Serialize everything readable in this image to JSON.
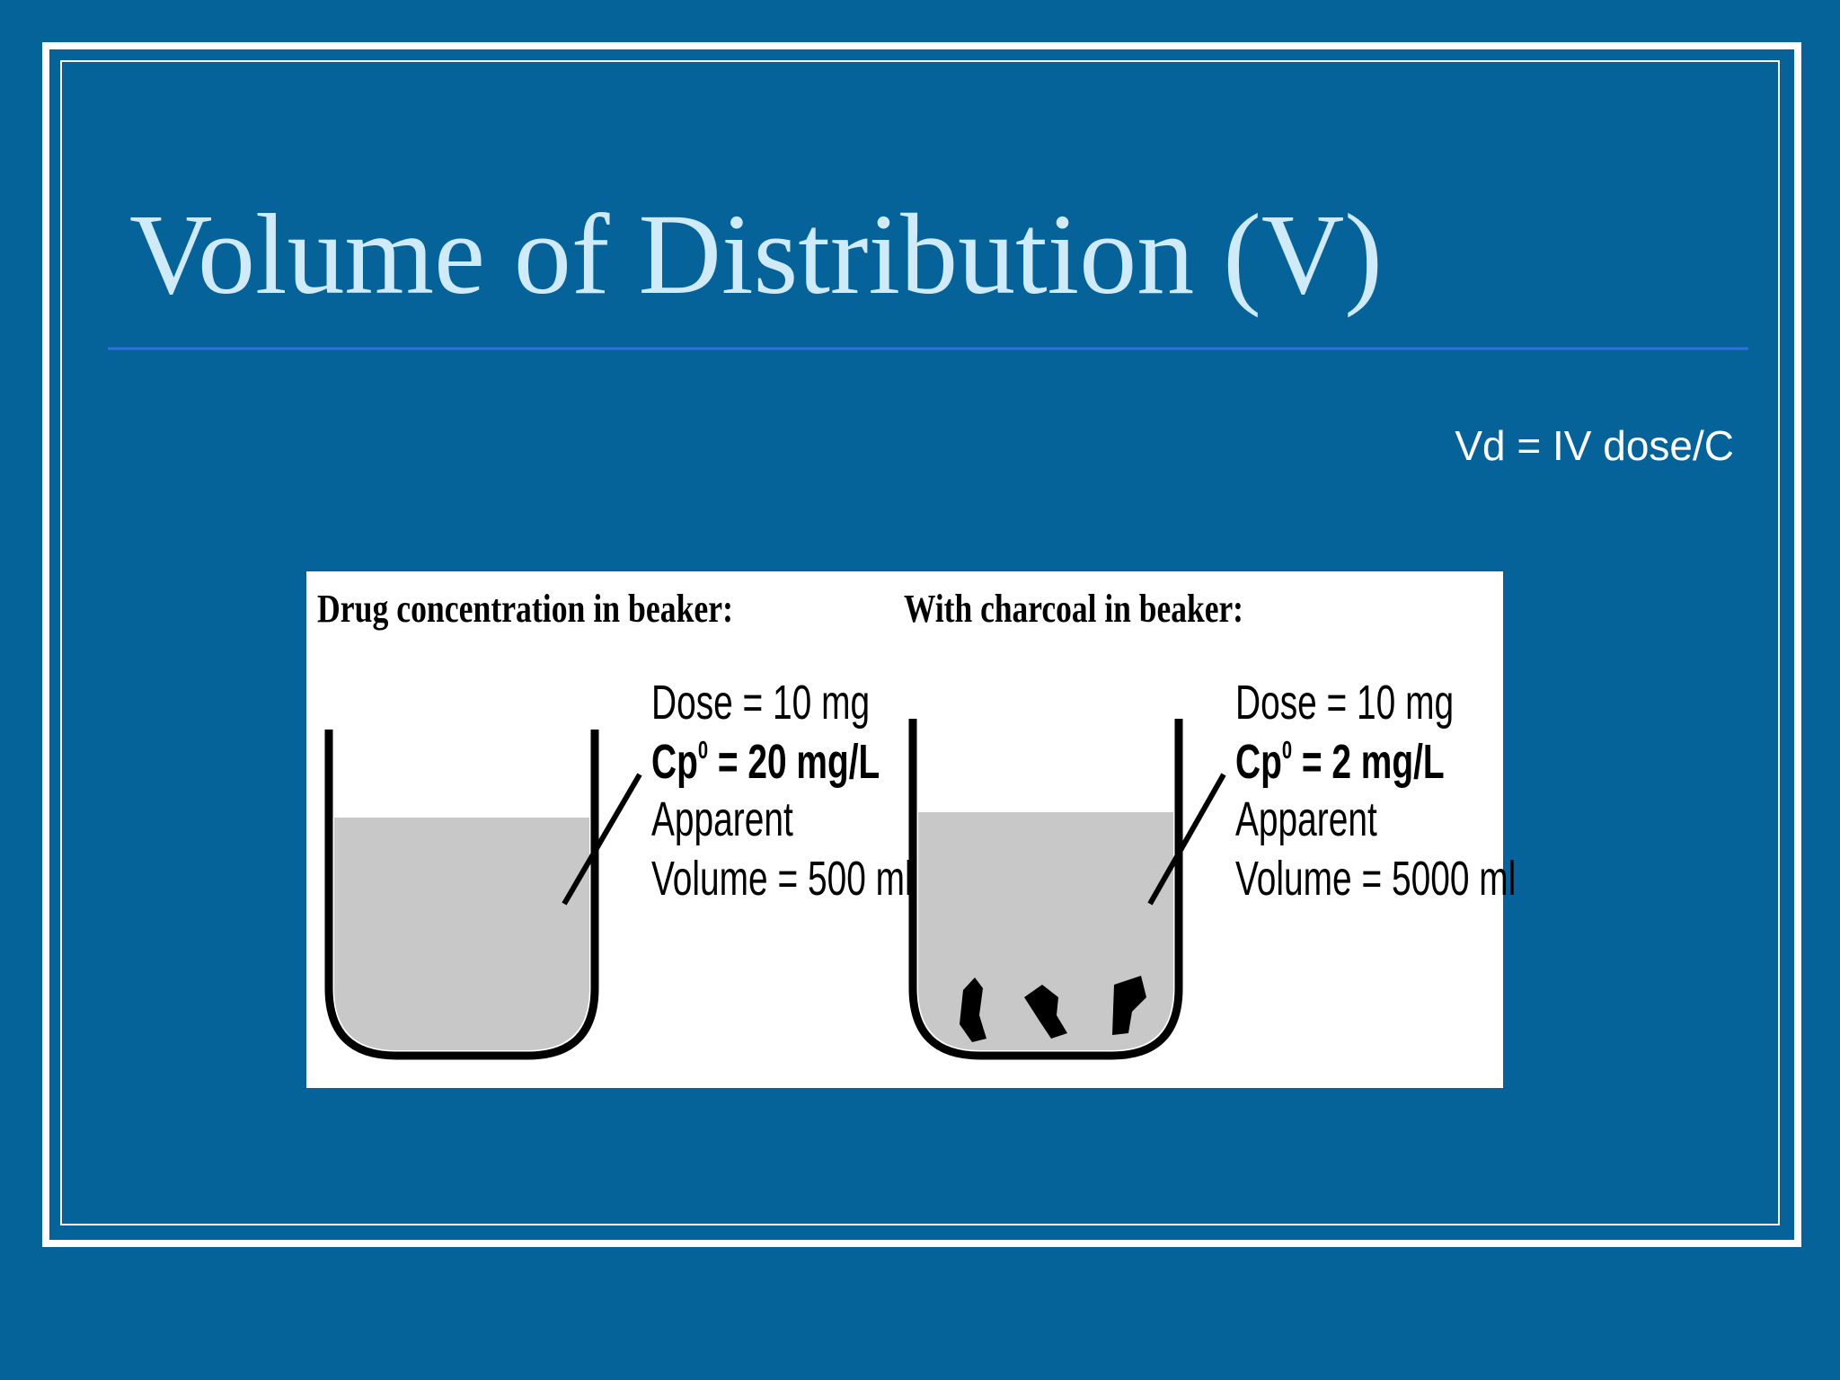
{
  "title": "Volume of Distribution (V)",
  "formula": "Vd = IV dose/C",
  "figure": {
    "panels": [
      {
        "heading": "Drug concentration in beaker:",
        "dose": "Dose = 10 mg",
        "cp": {
          "symbol": "Cp",
          "sup": "0",
          "rest": " = 20 mg/L"
        },
        "apparent": "Apparent",
        "volume": "Volume = 500 ml"
      },
      {
        "heading": "With charcoal in beaker:",
        "dose": "Dose = 10 mg",
        "cp": {
          "symbol": "Cp",
          "sup": "0",
          "rest": " = 2 mg/L"
        },
        "apparent": "Apparent",
        "volume": "Volume = 5000 ml"
      }
    ]
  }
}
